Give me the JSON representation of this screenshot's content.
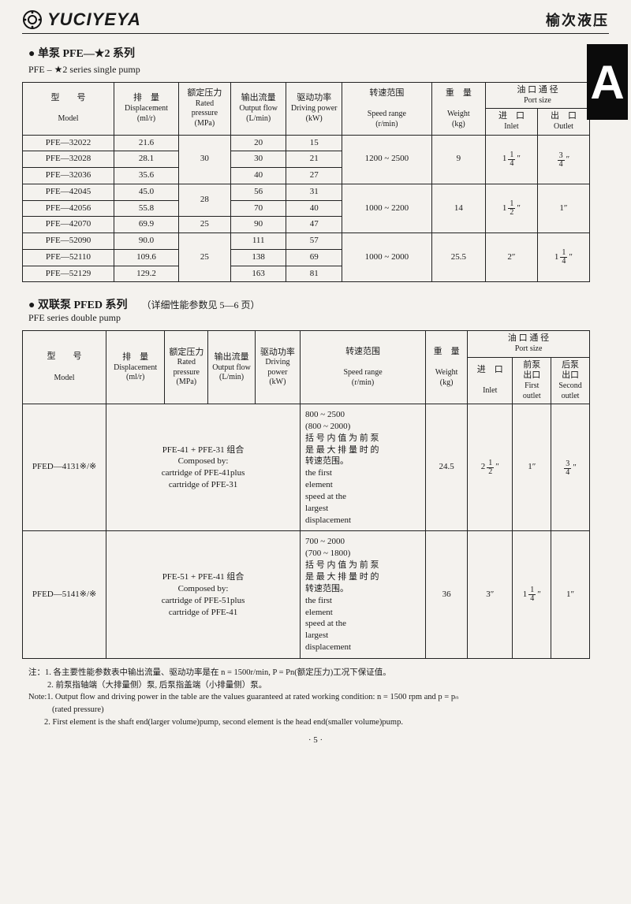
{
  "header": {
    "brand_en": "YUCIYEYA",
    "brand_cn": "榆次液压",
    "side_tab": "A"
  },
  "section1": {
    "title": "● 单泵 PFE—★2 系列",
    "subtitle": "PFE – ★2 series single pump",
    "columns": {
      "model_cn": "型　　号",
      "model_en": "Model",
      "disp_cn": "排　量",
      "disp_en": "Displacement",
      "disp_unit": "(ml/r)",
      "press_cn": "额定压力",
      "press_en": "Rated pressure",
      "press_unit": "(MPa)",
      "flow_cn": "输出流量",
      "flow_en": "Output flow",
      "flow_unit": "(L/min)",
      "power_cn": "驱动功率",
      "power_en": "Driving power",
      "power_unit": "(kW)",
      "speed_cn": "转速范围",
      "speed_en": "Speed range",
      "speed_unit": "(r/min)",
      "weight_cn": "重　量",
      "weight_en": "Weight",
      "weight_unit": "(kg)",
      "port_cn": "油 口 通 径",
      "port_en": "Port size",
      "inlet_cn": "进　口",
      "inlet_en": "Inlet",
      "outlet_cn": "出　口",
      "outlet_en": "Outlet"
    },
    "rows": [
      {
        "model": "PFE—32022",
        "disp": "21.6",
        "flow": "20",
        "power": "15"
      },
      {
        "model": "PFE—32028",
        "disp": "28.1",
        "flow": "30",
        "power": "21"
      },
      {
        "model": "PFE—32036",
        "disp": "35.6",
        "flow": "40",
        "power": "27"
      },
      {
        "model": "PFE—42045",
        "disp": "45.0",
        "flow": "56",
        "power": "31"
      },
      {
        "model": "PFE—42056",
        "disp": "55.8",
        "flow": "70",
        "power": "40"
      },
      {
        "model": "PFE—42070",
        "disp": "69.9",
        "flow": "90",
        "power": "47"
      },
      {
        "model": "PFE—52090",
        "disp": "90.0",
        "flow": "111",
        "power": "57"
      },
      {
        "model": "PFE—52110",
        "disp": "109.6",
        "flow": "138",
        "power": "69"
      },
      {
        "model": "PFE—52129",
        "disp": "129.2",
        "flow": "163",
        "power": "81"
      }
    ],
    "groups": {
      "g1": {
        "press": "30",
        "speed": "1200 ~ 2500",
        "weight": "9",
        "inlet": {
          "w": "1",
          "n": "1",
          "d": "4"
        },
        "outlet": {
          "n": "3",
          "d": "4"
        }
      },
      "g2a": {
        "press": "28"
      },
      "g2b": {
        "press": "25"
      },
      "g2": {
        "speed": "1000 ~ 2200",
        "weight": "14",
        "inlet": {
          "w": "1",
          "n": "1",
          "d": "2"
        },
        "outlet_plain": "1″"
      },
      "g3": {
        "press": "25",
        "speed": "1000 ~ 2000",
        "weight": "25.5",
        "inlet_plain": "2″",
        "outlet": {
          "w": "1",
          "n": "1",
          "d": "4"
        }
      }
    }
  },
  "section2": {
    "title": "● 双联泵 PFED 系列",
    "note_inline": "（详细性能参数见 5—6 页）",
    "subtitle": "PFE series double pump",
    "columns": {
      "first_cn": "前泵",
      "first_cn2": "出口",
      "first_en": "First",
      "first_en2": "outlet",
      "second_cn": "后泵",
      "second_cn2": "出口",
      "second_en": "Second",
      "second_en2": "outlet"
    },
    "rows": [
      {
        "model": "PFED—4131※/※",
        "comp_cn": "PFE-41 + PFE-31 组合",
        "comp_en1": "Composed by:",
        "comp_en2": "cartridge of PFE-41plus",
        "comp_en3": "cartridge of PFE-31",
        "speed1": "800 ~ 2500",
        "speed2": "(800 ~ 2000)",
        "speed_cn1": "括 号 内 值 为 前 泵",
        "speed_cn2": "是 最 大 排 量 时 的",
        "speed_cn3": "转速范围。",
        "speed_en1": "the first",
        "speed_en2": "element",
        "speed_en3": "speed at the",
        "speed_en4": "largest",
        "speed_en5": "displacement",
        "weight": "24.5",
        "inlet": {
          "w": "2",
          "n": "1",
          "d": "2"
        },
        "first_out_plain": "1″",
        "second_out": {
          "n": "3",
          "d": "4"
        }
      },
      {
        "model": "PFED—5141※/※",
        "comp_cn": "PFE-51 + PFE-41 组合",
        "comp_en1": "Composed by:",
        "comp_en2": "cartridge of PFE-51plus",
        "comp_en3": "cartridge of PFE-41",
        "speed1": "700 ~ 2000",
        "speed2": "(700 ~ 1800)",
        "speed_cn1": "括 号 内 值 为 前 泵",
        "speed_cn2": "是 最 大 排 量 时 的",
        "speed_cn3": "转速范围。",
        "speed_en1": "the first",
        "speed_en2": "element",
        "speed_en3": "speed at the",
        "speed_en4": "largest",
        "speed_en5": "displacement",
        "weight": "36",
        "inlet_plain": "3″",
        "first_out": {
          "w": "1",
          "n": "1",
          "d": "4"
        },
        "second_out_plain": "1″"
      }
    ]
  },
  "notes": {
    "cn_lead": "注：",
    "cn1": "1. 各主要性能参数表中输出流量、驱动功率是在 n = 1500r/min, P = Pn(额定压力)工况下保证值。",
    "cn2": "2. 前泵指轴端（大排量侧）泵, 后泵指盖端（小排量侧）泵。",
    "en_lead": "Note:",
    "en1a": "1. Output flow and driving power in the table are the values guaranteed at rated working condition: n = 1500 rpm and p = pₙ",
    "en1b": "(rated pressure)",
    "en2": "2. First element is the shaft end(larger volume)pump, second element is the head end(smaller volume)pump."
  },
  "page_number": "· 5 ·"
}
